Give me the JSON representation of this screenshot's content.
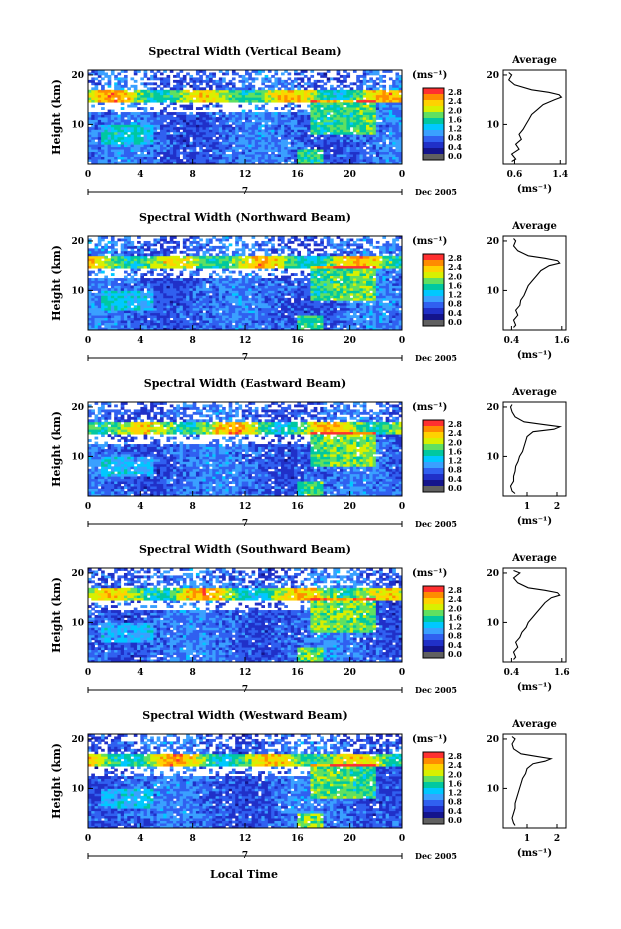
{
  "colorbar": {
    "unit_label": "(ms⁻¹)",
    "ticks": [
      "2.8",
      "2.4",
      "2.0",
      "1.6",
      "1.2",
      "0.8",
      "0.4",
      "0.0"
    ],
    "colors": [
      "#ff3030",
      "#ff8c00",
      "#ffd200",
      "#d8f000",
      "#60e060",
      "#00c8a0",
      "#00c8ff",
      "#3aa0ff",
      "#3060f0",
      "#2030c8",
      "#14148c",
      "#606060"
    ]
  },
  "shared": {
    "x_ticks": [
      "0",
      "4",
      "8",
      "12",
      "16",
      "20",
      "0"
    ],
    "y_ticks": [
      "20",
      "10"
    ],
    "ylabel": "Height (km)",
    "day_label": "7",
    "date_label": "Dec 2005",
    "xlabel": "Local Time",
    "avg_title": "Average",
    "avg_unit": "(ms⁻¹)"
  },
  "chart_data": [
    {
      "type": "heatmap",
      "title": "Spectral Width (Vertical Beam)",
      "x_range_hours": [
        0,
        24
      ],
      "y_range_km": [
        2,
        21
      ],
      "profile": {
        "type": "line",
        "title": "Average",
        "xlim": [
          0.4,
          1.5
        ],
        "x_ticks": [
          "0.6",
          "1.4"
        ],
        "x_tick_values": [
          0.6,
          1.4
        ],
        "h": [
          2.5,
          3,
          4,
          5,
          6,
          7,
          8,
          9,
          10,
          11,
          12,
          13,
          14,
          15,
          15.5,
          16,
          16.5,
          17,
          18,
          19,
          20,
          20.5
        ],
        "v": [
          0.55,
          0.62,
          0.55,
          0.68,
          0.62,
          0.72,
          0.68,
          0.75,
          0.8,
          0.85,
          0.9,
          1.0,
          1.1,
          1.3,
          1.42,
          1.38,
          1.2,
          0.9,
          0.6,
          0.5,
          0.55,
          0.5
        ]
      }
    },
    {
      "type": "heatmap",
      "title": "Spectral Width (Northward Beam)",
      "x_range_hours": [
        0,
        24
      ],
      "y_range_km": [
        2,
        21
      ],
      "profile": {
        "type": "line",
        "title": "Average",
        "xlim": [
          0.2,
          1.7
        ],
        "x_ticks": [
          "0.4",
          "1.6"
        ],
        "x_tick_values": [
          0.4,
          1.6
        ],
        "h": [
          2.5,
          3,
          4,
          5,
          6,
          7,
          8,
          9,
          10,
          11,
          12,
          13,
          14,
          15,
          15.5,
          16,
          16.5,
          17,
          18,
          19,
          20,
          20.5
        ],
        "v": [
          0.45,
          0.5,
          0.45,
          0.55,
          0.5,
          0.6,
          0.62,
          0.7,
          0.75,
          0.8,
          0.9,
          1.0,
          1.1,
          1.3,
          1.55,
          1.5,
          1.2,
          0.8,
          0.55,
          0.45,
          0.5,
          0.45
        ]
      }
    },
    {
      "type": "heatmap",
      "title": "Spectral Width (Eastward Beam)",
      "x_range_hours": [
        0,
        24
      ],
      "y_range_km": [
        2,
        21
      ],
      "profile": {
        "type": "line",
        "title": "Average",
        "xlim": [
          0.2,
          2.3
        ],
        "x_ticks": [
          "1",
          "2"
        ],
        "x_tick_values": [
          1,
          2
        ],
        "h": [
          2.5,
          3,
          4,
          5,
          6,
          7,
          8,
          9,
          10,
          11,
          12,
          13,
          14,
          15,
          15.5,
          16,
          16.5,
          17,
          18,
          19,
          20,
          20.5
        ],
        "v": [
          0.6,
          0.5,
          0.45,
          0.55,
          0.55,
          0.6,
          0.62,
          0.7,
          0.75,
          0.85,
          0.9,
          0.95,
          1.0,
          1.2,
          1.9,
          2.1,
          1.5,
          0.9,
          0.6,
          0.5,
          0.45,
          0.5
        ]
      }
    },
    {
      "type": "heatmap",
      "title": "Spectral Width (Southward Beam)",
      "x_range_hours": [
        0,
        24
      ],
      "y_range_km": [
        2,
        21
      ],
      "profile": {
        "type": "line",
        "title": "Average",
        "xlim": [
          0.2,
          1.7
        ],
        "x_ticks": [
          "0.4",
          "1.6"
        ],
        "x_tick_values": [
          0.4,
          1.6
        ],
        "h": [
          2.5,
          3,
          4,
          5,
          6,
          7,
          8,
          9,
          10,
          11,
          12,
          13,
          14,
          15,
          15.5,
          16,
          16.5,
          17,
          18,
          19,
          20,
          20.5
        ],
        "v": [
          0.45,
          0.5,
          0.45,
          0.55,
          0.5,
          0.6,
          0.65,
          0.75,
          0.8,
          0.9,
          1.0,
          1.1,
          1.2,
          1.35,
          1.55,
          1.5,
          1.2,
          0.8,
          0.55,
          0.45,
          0.6,
          0.45
        ]
      }
    },
    {
      "type": "heatmap",
      "title": "Spectral Width (Westward Beam)",
      "x_range_hours": [
        0,
        24
      ],
      "y_range_km": [
        2,
        21
      ],
      "profile": {
        "type": "line",
        "title": "Average",
        "xlim": [
          0.2,
          2.3
        ],
        "x_ticks": [
          "1",
          "2"
        ],
        "x_tick_values": [
          1,
          2
        ],
        "h": [
          2.5,
          3,
          4,
          5,
          6,
          7,
          8,
          9,
          10,
          11,
          12,
          13,
          14,
          15,
          15.5,
          16,
          16.5,
          17,
          18,
          19,
          20,
          20.5
        ],
        "v": [
          0.6,
          0.55,
          0.5,
          0.55,
          0.6,
          0.6,
          0.65,
          0.7,
          0.75,
          0.8,
          0.85,
          0.95,
          1.0,
          1.2,
          1.6,
          1.8,
          1.3,
          0.8,
          0.55,
          0.5,
          0.6,
          0.5
        ]
      }
    }
  ]
}
